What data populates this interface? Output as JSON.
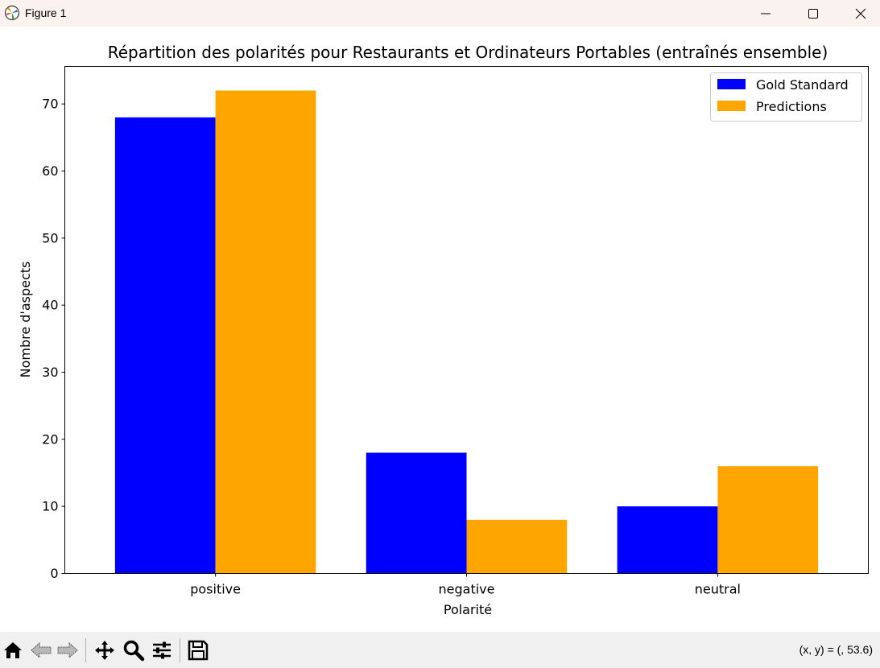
{
  "window": {
    "title": "Figure 1"
  },
  "toolbar": {
    "buttons": [
      "home-icon",
      "back-icon",
      "forward-icon",
      "pan-icon",
      "zoom-icon",
      "configure-icon",
      "save-icon"
    ],
    "coords": "(x, y) = (, 53.6)"
  },
  "colors": {
    "gold": "#0000ff",
    "pred": "#ffa500"
  },
  "chart_data": {
    "type": "bar",
    "title": "Répartition des polarités pour Restaurants et Ordinateurs Portables (entraînés ensemble)",
    "xlabel": "Polarité",
    "ylabel": "Nombre d'aspects",
    "categories": [
      "positive",
      "negative",
      "neutral"
    ],
    "series": [
      {
        "name": "Gold Standard",
        "values": [
          68,
          18,
          10
        ],
        "color": "#0000ff"
      },
      {
        "name": "Predictions",
        "values": [
          72,
          8,
          16
        ],
        "color": "#ffa500"
      }
    ],
    "ylim": [
      0,
      75.6
    ],
    "yticks": [
      0,
      10,
      20,
      30,
      40,
      50,
      60,
      70
    ],
    "legend": "top-right",
    "grid": false
  }
}
